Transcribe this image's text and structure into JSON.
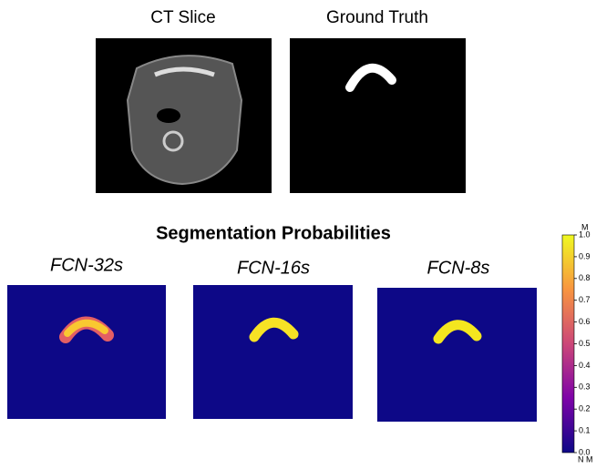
{
  "top_panels": [
    {
      "title": "CT Slice"
    },
    {
      "title": "Ground Truth"
    }
  ],
  "section_title": "Segmentation Probabilities",
  "models": [
    {
      "title": "FCN-32s"
    },
    {
      "title": "FCN-16s"
    },
    {
      "title": "FCN-8s"
    }
  ],
  "colorbar": {
    "top_label": "M",
    "bottom_label": "N M",
    "lim": [
      0,
      1
    ],
    "ticks": [
      {
        "value": 0,
        "label": "0.0"
      },
      {
        "value": 0.1,
        "label": "0.1"
      },
      {
        "value": 0.2,
        "label": "0.2"
      },
      {
        "value": 0.3,
        "label": "0.3"
      },
      {
        "value": 0.4,
        "label": "0.4"
      },
      {
        "value": 0.5,
        "label": "0.5"
      },
      {
        "value": 0.6,
        "label": "0.6"
      },
      {
        "value": 0.7,
        "label": "0.7"
      },
      {
        "value": 0.8,
        "label": "0.8"
      },
      {
        "value": 0.9,
        "label": "0.9"
      },
      {
        "value": 1,
        "label": "1.0"
      }
    ]
  }
}
